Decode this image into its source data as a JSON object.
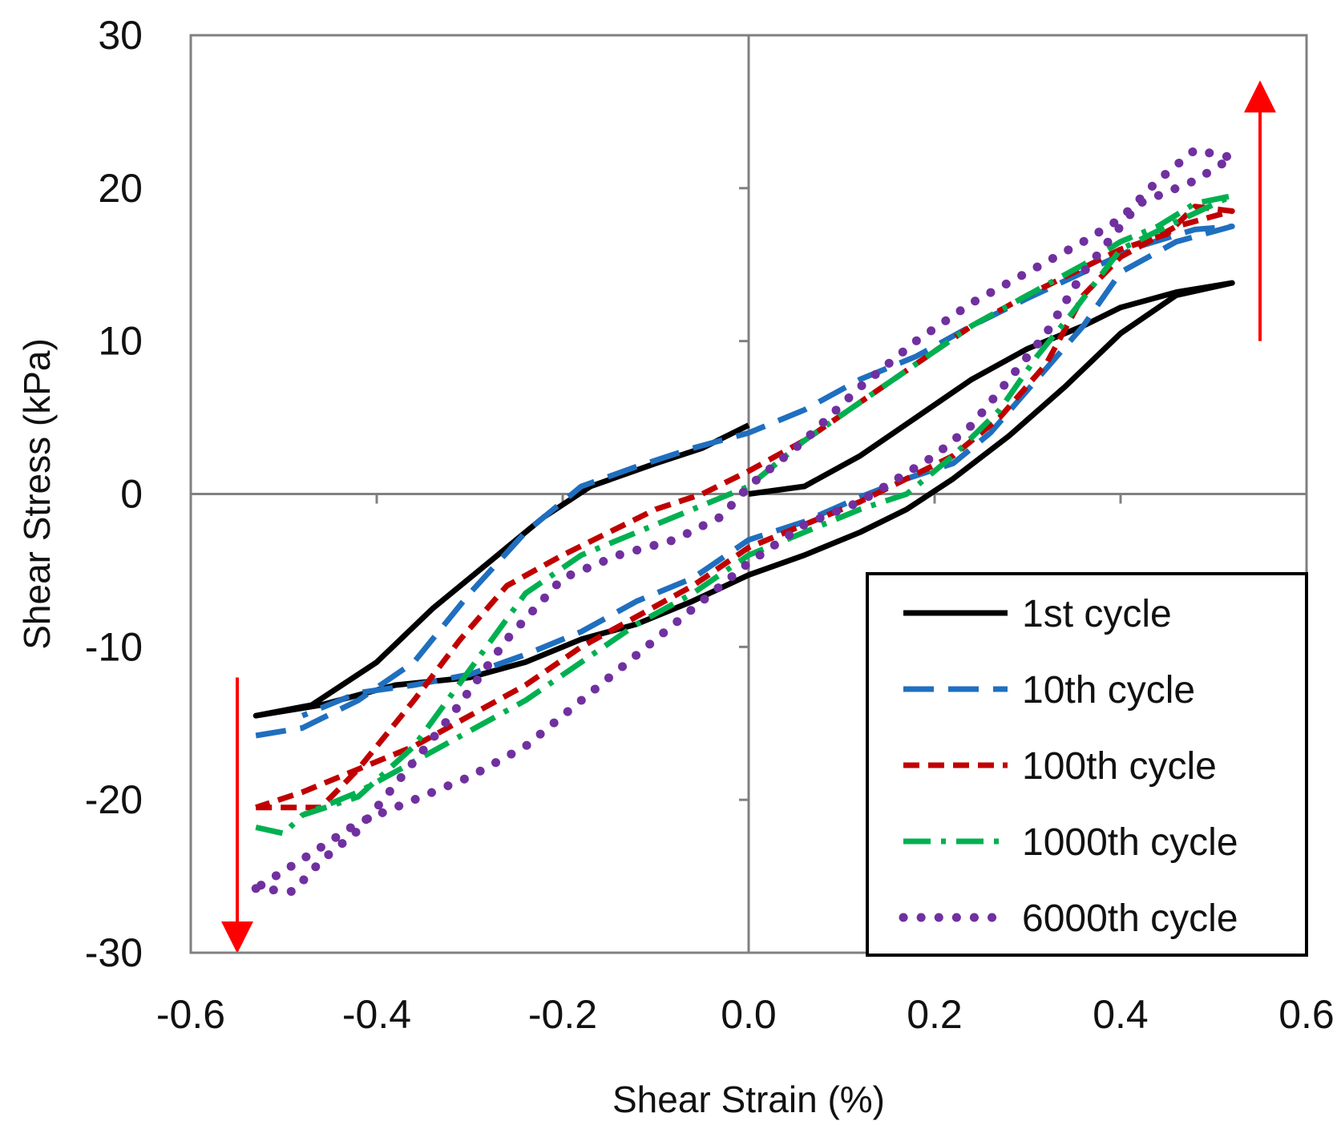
{
  "chart_data": {
    "type": "line",
    "title": "",
    "xlabel": "Shear Strain (%)",
    "ylabel": "Shear Stress (kPa)",
    "xlim": [
      -0.6,
      0.6
    ],
    "ylim": [
      -30,
      30
    ],
    "x_ticks": [
      -0.6,
      -0.4,
      -0.2,
      0.0,
      0.2,
      0.4,
      0.6
    ],
    "x_tick_labels": [
      "-0.6",
      "-0.4",
      "-0.2",
      "0.0",
      "0.2",
      "0.4",
      "0.6"
    ],
    "y_ticks": [
      -30,
      -20,
      -10,
      0,
      10,
      20,
      30
    ],
    "y_tick_labels": [
      "-30",
      "-20",
      "-10",
      "0",
      "10",
      "20",
      "30"
    ],
    "grid": false,
    "legend_position": "bottom-right",
    "series": [
      {
        "name": "1st cycle",
        "color": "#000000",
        "style": "solid",
        "points": [
          [
            0.0,
            0.0
          ],
          [
            0.06,
            0.5
          ],
          [
            0.12,
            2.5
          ],
          [
            0.18,
            5.0
          ],
          [
            0.24,
            7.5
          ],
          [
            0.3,
            9.5
          ],
          [
            0.36,
            11.0
          ],
          [
            0.4,
            12.2
          ],
          [
            0.46,
            13.2
          ],
          [
            0.52,
            13.8
          ],
          [
            0.46,
            13.0
          ],
          [
            0.4,
            10.5
          ],
          [
            0.34,
            7.0
          ],
          [
            0.28,
            3.8
          ],
          [
            0.22,
            1.0
          ],
          [
            0.17,
            -1.0
          ],
          [
            0.12,
            -2.5
          ],
          [
            0.06,
            -4.0
          ],
          [
            0.0,
            -5.3
          ],
          [
            -0.06,
            -7.0
          ],
          [
            -0.12,
            -8.5
          ],
          [
            -0.18,
            -9.5
          ],
          [
            -0.24,
            -11.0
          ],
          [
            -0.3,
            -12.0
          ],
          [
            -0.38,
            -12.5
          ],
          [
            -0.46,
            -13.8
          ],
          [
            -0.53,
            -14.5
          ],
          [
            -0.47,
            -13.8
          ],
          [
            -0.4,
            -11.0
          ],
          [
            -0.34,
            -7.5
          ],
          [
            -0.28,
            -4.5
          ],
          [
            -0.22,
            -1.5
          ],
          [
            -0.17,
            0.5
          ],
          [
            -0.1,
            2.0
          ],
          [
            -0.05,
            3.0
          ],
          [
            0.0,
            4.5
          ]
        ]
      },
      {
        "name": "10th cycle",
        "color": "#1f6fbf",
        "style": "dashed",
        "points": [
          [
            -0.53,
            -15.8
          ],
          [
            -0.48,
            -15.3
          ],
          [
            -0.42,
            -13.5
          ],
          [
            -0.36,
            -11.0
          ],
          [
            -0.3,
            -6.5
          ],
          [
            -0.24,
            -2.5
          ],
          [
            -0.18,
            0.5
          ],
          [
            -0.12,
            1.8
          ],
          [
            -0.06,
            3.0
          ],
          [
            0.0,
            4.0
          ],
          [
            0.06,
            5.5
          ],
          [
            0.12,
            7.5
          ],
          [
            0.18,
            9.0
          ],
          [
            0.24,
            11.0
          ],
          [
            0.3,
            12.8
          ],
          [
            0.36,
            14.5
          ],
          [
            0.42,
            16.2
          ],
          [
            0.48,
            17.3
          ],
          [
            0.52,
            17.5
          ],
          [
            0.46,
            16.5
          ],
          [
            0.4,
            14.5
          ],
          [
            0.36,
            11.0
          ],
          [
            0.31,
            7.5
          ],
          [
            0.26,
            4.0
          ],
          [
            0.22,
            2.0
          ],
          [
            0.17,
            1.0
          ],
          [
            0.12,
            -0.2
          ],
          [
            0.06,
            -1.8
          ],
          [
            0.0,
            -3.0
          ],
          [
            -0.06,
            -5.5
          ],
          [
            -0.12,
            -7.0
          ],
          [
            -0.18,
            -9.0
          ],
          [
            -0.24,
            -10.5
          ],
          [
            -0.3,
            -11.8
          ],
          [
            -0.36,
            -12.5
          ],
          [
            -0.42,
            -13.0
          ],
          [
            -0.48,
            -14.5
          ]
        ]
      },
      {
        "name": "100th cycle",
        "color": "#c00000",
        "style": "short-dash",
        "points": [
          [
            -0.53,
            -20.5
          ],
          [
            -0.46,
            -20.5
          ],
          [
            -0.42,
            -18.0
          ],
          [
            -0.36,
            -13.5
          ],
          [
            -0.31,
            -9.5
          ],
          [
            -0.26,
            -6.0
          ],
          [
            -0.2,
            -4.0
          ],
          [
            -0.15,
            -2.5
          ],
          [
            -0.1,
            -1.0
          ],
          [
            -0.05,
            0.0
          ],
          [
            0.0,
            1.5
          ],
          [
            0.06,
            3.5
          ],
          [
            0.12,
            6.0
          ],
          [
            0.18,
            8.5
          ],
          [
            0.24,
            11.0
          ],
          [
            0.3,
            13.0
          ],
          [
            0.36,
            14.8
          ],
          [
            0.4,
            16.0
          ],
          [
            0.45,
            17.0
          ],
          [
            0.48,
            18.8
          ],
          [
            0.52,
            18.5
          ],
          [
            0.46,
            17.5
          ],
          [
            0.4,
            15.5
          ],
          [
            0.36,
            13.0
          ],
          [
            0.32,
            8.5
          ],
          [
            0.27,
            5.0
          ],
          [
            0.22,
            2.5
          ],
          [
            0.17,
            1.0
          ],
          [
            0.12,
            -0.5
          ],
          [
            0.06,
            -2.0
          ],
          [
            0.0,
            -3.5
          ],
          [
            -0.06,
            -6.0
          ],
          [
            -0.12,
            -8.0
          ],
          [
            -0.18,
            -10.0
          ],
          [
            -0.24,
            -12.5
          ],
          [
            -0.3,
            -14.5
          ],
          [
            -0.36,
            -16.5
          ],
          [
            -0.42,
            -18.0
          ],
          [
            -0.48,
            -19.5
          ],
          [
            -0.53,
            -20.5
          ]
        ]
      },
      {
        "name": "1000th cycle",
        "color": "#00b050",
        "style": "dash-dot",
        "points": [
          [
            -0.53,
            -21.8
          ],
          [
            -0.5,
            -22.2
          ],
          [
            -0.48,
            -21.0
          ],
          [
            -0.42,
            -19.8
          ],
          [
            -0.36,
            -16.5
          ],
          [
            -0.3,
            -11.5
          ],
          [
            -0.24,
            -6.5
          ],
          [
            -0.18,
            -4.0
          ],
          [
            -0.12,
            -2.5
          ],
          [
            -0.06,
            -1.0
          ],
          [
            0.0,
            0.5
          ],
          [
            0.06,
            3.5
          ],
          [
            0.12,
            6.0
          ],
          [
            0.18,
            8.5
          ],
          [
            0.24,
            11.0
          ],
          [
            0.3,
            13.0
          ],
          [
            0.36,
            15.0
          ],
          [
            0.4,
            16.5
          ],
          [
            0.44,
            17.5
          ],
          [
            0.48,
            19.0
          ],
          [
            0.52,
            19.5
          ],
          [
            0.46,
            17.8
          ],
          [
            0.4,
            16.0
          ],
          [
            0.35,
            12.0
          ],
          [
            0.31,
            9.0
          ],
          [
            0.27,
            5.5
          ],
          [
            0.22,
            2.5
          ],
          [
            0.17,
            0.0
          ],
          [
            0.12,
            -1.0
          ],
          [
            0.06,
            -2.5
          ],
          [
            0.0,
            -4.0
          ],
          [
            -0.06,
            -6.5
          ],
          [
            -0.12,
            -8.5
          ],
          [
            -0.18,
            -11.0
          ],
          [
            -0.24,
            -13.5
          ],
          [
            -0.3,
            -15.5
          ],
          [
            -0.36,
            -17.5
          ],
          [
            -0.42,
            -19.5
          ],
          [
            -0.48,
            -21.0
          ]
        ]
      },
      {
        "name": "6000th cycle",
        "color": "#7030a0",
        "style": "dotted",
        "points": [
          [
            -0.53,
            -25.8
          ],
          [
            -0.49,
            -26.0
          ],
          [
            -0.46,
            -24.0
          ],
          [
            -0.42,
            -22.0
          ],
          [
            -0.38,
            -19.0
          ],
          [
            -0.32,
            -14.5
          ],
          [
            -0.26,
            -9.5
          ],
          [
            -0.2,
            -5.5
          ],
          [
            -0.14,
            -4.0
          ],
          [
            -0.08,
            -3.0
          ],
          [
            -0.03,
            -1.5
          ],
          [
            0.0,
            0.5
          ],
          [
            0.06,
            3.5
          ],
          [
            0.12,
            7.0
          ],
          [
            0.18,
            10.0
          ],
          [
            0.24,
            12.5
          ],
          [
            0.3,
            14.5
          ],
          [
            0.36,
            16.5
          ],
          [
            0.4,
            18.0
          ],
          [
            0.44,
            20.5
          ],
          [
            0.48,
            22.5
          ],
          [
            0.52,
            22.0
          ],
          [
            0.48,
            20.5
          ],
          [
            0.42,
            19.0
          ],
          [
            0.36,
            14.5
          ],
          [
            0.32,
            10.5
          ],
          [
            0.28,
            7.5
          ],
          [
            0.24,
            4.5
          ],
          [
            0.2,
            2.5
          ],
          [
            0.16,
            1.0
          ],
          [
            0.12,
            -0.5
          ],
          [
            0.06,
            -2.0
          ],
          [
            0.0,
            -4.5
          ],
          [
            -0.06,
            -7.5
          ],
          [
            -0.12,
            -10.5
          ],
          [
            -0.18,
            -13.5
          ],
          [
            -0.24,
            -16.5
          ],
          [
            -0.3,
            -18.5
          ],
          [
            -0.36,
            -20.0
          ],
          [
            -0.42,
            -21.5
          ],
          [
            -0.47,
            -23.5
          ],
          [
            -0.53,
            -25.8
          ]
        ]
      }
    ],
    "annotations": {
      "up_arrow": {
        "x": 0.55,
        "y_from": 10,
        "y_to": 26,
        "color": "#ff0000"
      },
      "down_arrow": {
        "x": -0.55,
        "y_from": -12,
        "y_to": -29,
        "color": "#ff0000"
      }
    }
  }
}
